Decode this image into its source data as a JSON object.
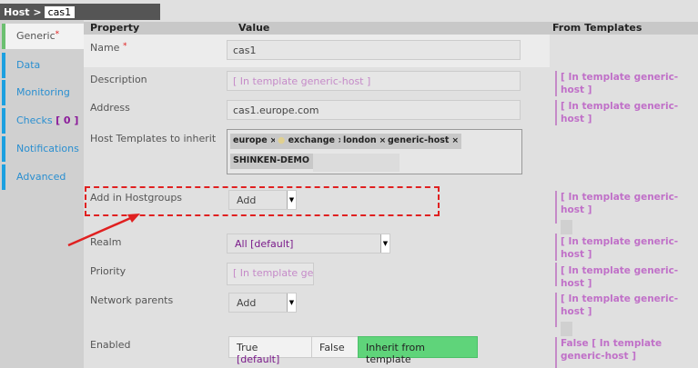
{
  "breadcrumb": {
    "root": "Host >",
    "current": "cas1"
  },
  "tabs": [
    {
      "label": "Generic",
      "required": "*"
    },
    {
      "label": "Data"
    },
    {
      "label": "Monitoring"
    },
    {
      "label": "Checks",
      "count": "[ 0 ]"
    },
    {
      "label": "Notifications"
    },
    {
      "label": "Advanced"
    }
  ],
  "header": {
    "property": "Property",
    "value": "Value",
    "from_templates": "From Templates"
  },
  "rows": {
    "name": {
      "label": "Name",
      "required": "*",
      "value": "cas1"
    },
    "description": {
      "label": "Description",
      "placeholder": "[ In template generic-host ]",
      "template": "[ In template generic-host ]"
    },
    "address": {
      "label": "Address",
      "value": "cas1.europe.com",
      "template": "[ In template generic-host ]"
    },
    "templates": {
      "label": "Host Templates to inherit",
      "tags": [
        "europe",
        "exchange",
        "london",
        "generic-host",
        "SHINKEN-DEMO"
      ],
      "remove": "×"
    },
    "hostgroups": {
      "label": "Add in Hostgroups",
      "select": "Add",
      "template": "[ In template generic-host ]"
    },
    "realm": {
      "label": "Realm",
      "select": "All [default]",
      "template": "[ In template generic-host ]"
    },
    "priority": {
      "label": "Priority",
      "placeholder": "[ In template generic-host ]",
      "template": "[ In template generic-host ]"
    },
    "parents": {
      "label": "Network parents",
      "select": "Add",
      "template": "[ In template generic-host ]"
    },
    "enabled": {
      "label": "Enabled",
      "opt_true": "True",
      "opt_true_default": "[default]",
      "opt_false": "False",
      "opt_inherit": "Inherit from template",
      "template": "False [ In template generic-host ]"
    }
  },
  "colors": {
    "accent_green": "#5fd47a",
    "link_blue": "#2a8fd0",
    "template_purple": "#c070c8",
    "highlight_red": "#e02020"
  }
}
